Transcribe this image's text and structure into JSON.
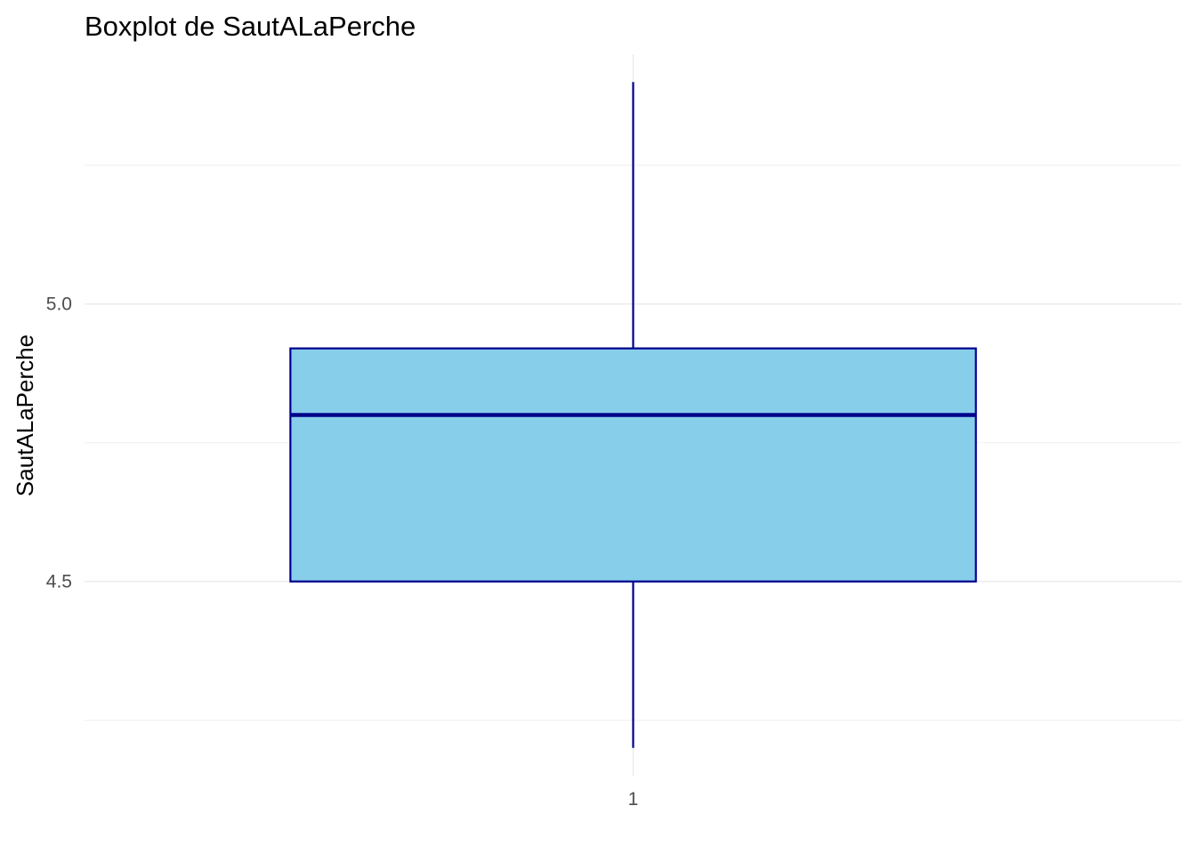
{
  "chart_data": {
    "type": "boxplot",
    "title": "Boxplot de SautALaPerche",
    "xlabel": "",
    "ylabel": "SautALaPerche",
    "categories": [
      "1"
    ],
    "boxes": [
      {
        "category": "1",
        "whisker_low": 4.2,
        "q1": 4.5,
        "median": 4.8,
        "q3": 4.92,
        "whisker_high": 5.4
      }
    ],
    "ylim": [
      4.15,
      5.45
    ],
    "y_ticks": [
      4.5,
      5.0
    ],
    "y_tick_labels": [
      "4.5",
      "5.0"
    ],
    "y_minor_ticks": [
      4.25,
      4.75,
      5.25
    ],
    "grid": true,
    "legend": "none",
    "colors": {
      "fill": "#87ceeb",
      "outline": "#00008b",
      "median": "#00008b",
      "whisker": "#00008b"
    }
  }
}
